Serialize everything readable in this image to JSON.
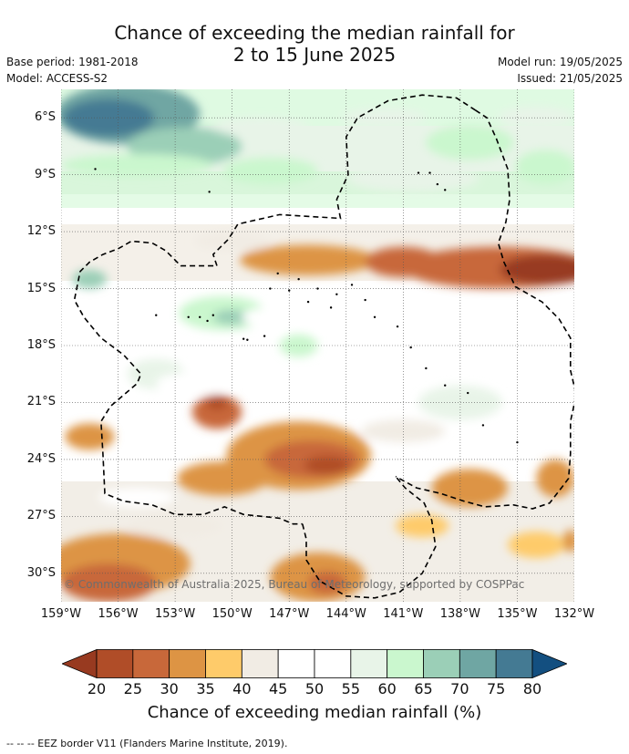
{
  "title": {
    "line1": "Chance of exceeding the median rainfall for",
    "line2": "2 to 15 June 2025"
  },
  "meta": {
    "base_period": "Base period: 1981-2018",
    "model": "Model: ACCESS-S2",
    "model_run": "Model run: 19/05/2025",
    "issued": "Issued: 21/05/2025"
  },
  "map": {
    "lon_min": -159,
    "lon_max": -132,
    "lat_min": -31.5,
    "lat_max": -4.5,
    "lat_labels": [
      {
        "lat": -6,
        "label": "6°S"
      },
      {
        "lat": -9,
        "label": "9°S"
      },
      {
        "lat": -12,
        "label": "12°S"
      },
      {
        "lat": -15,
        "label": "15°S"
      },
      {
        "lat": -18,
        "label": "18°S"
      },
      {
        "lat": -21,
        "label": "21°S"
      },
      {
        "lat": -24,
        "label": "24°S"
      },
      {
        "lat": -27,
        "label": "27°S"
      },
      {
        "lat": -30,
        "label": "30°S"
      }
    ],
    "lon_labels": [
      {
        "lon": -159,
        "label": "159°W"
      },
      {
        "lon": -156,
        "label": "156°W"
      },
      {
        "lon": -153,
        "label": "153°W"
      },
      {
        "lon": -150,
        "label": "150°W"
      },
      {
        "lon": -147,
        "label": "147°W"
      },
      {
        "lon": -144,
        "label": "144°W"
      },
      {
        "lon": -141,
        "label": "141°W"
      },
      {
        "lon": -138,
        "label": "138°W"
      },
      {
        "lon": -135,
        "label": "135°W"
      },
      {
        "lon": -132,
        "label": "132°W"
      }
    ],
    "copyright": "© Commonwealth of Australia 2025, Bureau of Meteorology, supported by COSPPac",
    "blobs": [
      {
        "lon": -155.5,
        "lat": -5.8,
        "rx": 3.8,
        "ry": 1.6,
        "cls": 75
      },
      {
        "lon": -156.5,
        "lat": -6.0,
        "rx": 2.4,
        "ry": 1.0,
        "cls": 80
      },
      {
        "lon": -152.5,
        "lat": -7.5,
        "rx": 3.0,
        "ry": 1.0,
        "cls": 70
      },
      {
        "lon": -148.0,
        "lat": -8.8,
        "rx": 2.5,
        "ry": 0.7,
        "cls": 65
      },
      {
        "lon": -137.5,
        "lat": -7.3,
        "rx": 2.3,
        "ry": 0.9,
        "cls": 65
      },
      {
        "lon": -133.5,
        "lat": -8.6,
        "rx": 1.6,
        "ry": 0.9,
        "cls": 65
      },
      {
        "lon": -140.5,
        "lat": -9.2,
        "rx": 3.5,
        "ry": 0.7,
        "cls": 60
      },
      {
        "lon": -136.0,
        "lat": -13.9,
        "rx": 5.0,
        "ry": 1.1,
        "cls": 30
      },
      {
        "lon": -133.5,
        "lat": -14.0,
        "rx": 2.4,
        "ry": 0.8,
        "cls": 20
      },
      {
        "lon": -146.0,
        "lat": -13.5,
        "rx": 3.6,
        "ry": 0.8,
        "cls": 35
      },
      {
        "lon": -141.0,
        "lat": -13.6,
        "rx": 2.0,
        "ry": 0.8,
        "cls": 30
      },
      {
        "lon": -157.5,
        "lat": -14.5,
        "rx": 0.9,
        "ry": 0.5,
        "cls": 70
      },
      {
        "lon": -150.5,
        "lat": -16.3,
        "rx": 2.3,
        "ry": 0.9,
        "cls": 65
      },
      {
        "lon": -150.0,
        "lat": -16.5,
        "rx": 1.0,
        "ry": 0.4,
        "cls": 70
      },
      {
        "lon": -146.5,
        "lat": -18.0,
        "rx": 1.0,
        "ry": 0.6,
        "cls": 65
      },
      {
        "lon": -154.0,
        "lat": -19.5,
        "rx": 1.5,
        "ry": 0.8,
        "cls": 60
      },
      {
        "lon": -138.0,
        "lat": -21.0,
        "rx": 2.2,
        "ry": 0.9,
        "cls": 60
      },
      {
        "lon": -150.8,
        "lat": -21.5,
        "rx": 1.3,
        "ry": 0.9,
        "cls": 30
      },
      {
        "lon": -150.8,
        "lat": -21.0,
        "rx": 0.6,
        "ry": 0.4,
        "cls": 25
      },
      {
        "lon": -146.5,
        "lat": -23.8,
        "rx": 3.8,
        "ry": 1.8,
        "cls": 35
      },
      {
        "lon": -145.8,
        "lat": -24.0,
        "rx": 2.5,
        "ry": 1.0,
        "cls": 30
      },
      {
        "lon": -145.0,
        "lat": -24.3,
        "rx": 1.2,
        "ry": 0.5,
        "cls": 25
      },
      {
        "lon": -157.5,
        "lat": -22.8,
        "rx": 1.3,
        "ry": 0.7,
        "cls": 35
      },
      {
        "lon": -150.5,
        "lat": -25.0,
        "rx": 2.4,
        "ry": 0.9,
        "cls": 35
      },
      {
        "lon": -137.5,
        "lat": -25.5,
        "rx": 2.0,
        "ry": 1.0,
        "cls": 35
      },
      {
        "lon": -133.0,
        "lat": -25.0,
        "rx": 1.0,
        "ry": 1.0,
        "cls": 35
      },
      {
        "lon": -156.0,
        "lat": -29.5,
        "rx": 3.8,
        "ry": 1.6,
        "cls": 35
      },
      {
        "lon": -156.5,
        "lat": -30.5,
        "rx": 2.5,
        "ry": 1.0,
        "cls": 30
      },
      {
        "lon": -145.5,
        "lat": -30.2,
        "rx": 2.5,
        "ry": 1.3,
        "cls": 35
      },
      {
        "lon": -145.0,
        "lat": -30.5,
        "rx": 1.0,
        "ry": 0.6,
        "cls": 30
      },
      {
        "lon": -140.0,
        "lat": -27.5,
        "rx": 1.4,
        "ry": 0.6,
        "cls": 40
      },
      {
        "lon": -134.0,
        "lat": -28.5,
        "rx": 1.5,
        "ry": 0.7,
        "cls": 40
      },
      {
        "lon": -132.2,
        "lat": -28.3,
        "rx": 0.4,
        "ry": 0.6,
        "cls": 35
      },
      {
        "lon": -148.5,
        "lat": -6.5,
        "rx": 2.5,
        "ry": 0.5,
        "cls": 60
      },
      {
        "lon": -142.0,
        "lat": -6.0,
        "rx": 2.2,
        "ry": 0.5,
        "cls": 60
      },
      {
        "lon": -134.0,
        "lat": -6.0,
        "rx": 2.0,
        "ry": 0.6,
        "cls": 60
      },
      {
        "lon": -155.0,
        "lat": -8.5,
        "rx": 4.0,
        "ry": 0.6,
        "cls": 65
      },
      {
        "lon": -147.0,
        "lat": -16.5,
        "rx": 2.5,
        "ry": 0.6,
        "cls": 55
      },
      {
        "lon": -152.0,
        "lat": -20.0,
        "rx": 2.0,
        "ry": 0.6,
        "cls": 55
      },
      {
        "lon": -143.0,
        "lat": -19.5,
        "rx": 2.0,
        "ry": 0.6,
        "cls": 55
      },
      {
        "lon": -155.0,
        "lat": -26.0,
        "rx": 2.0,
        "ry": 0.5,
        "cls": 55
      },
      {
        "lon": -141.0,
        "lat": -22.5,
        "rx": 2.2,
        "ry": 0.6,
        "cls": 45
      },
      {
        "lon": -153.0,
        "lat": -27.5,
        "rx": 2.5,
        "ry": 0.6,
        "cls": 45
      },
      {
        "lon": -150.0,
        "lat": -12.5,
        "rx": 2.0,
        "ry": 0.5,
        "cls": 45
      }
    ],
    "eez": [
      {
        "id": "north",
        "points": [
          [
            -137.2,
            -5.6
          ],
          [
            -138.2,
            -4.95
          ],
          [
            -140.0,
            -4.8
          ],
          [
            -141.8,
            -5.1
          ],
          [
            -143.4,
            -6.0
          ],
          [
            -144.0,
            -7.0
          ],
          [
            -143.9,
            -9.0
          ],
          [
            -144.5,
            -10.3
          ],
          [
            -144.3,
            -11.3
          ],
          [
            -147.5,
            -11.1
          ],
          [
            -149.7,
            -11.6
          ],
          [
            -150.2,
            -12.4
          ],
          [
            -151.0,
            -13.2
          ],
          [
            -150.8,
            -13.8
          ],
          [
            -152.7,
            -13.8
          ],
          [
            -153.5,
            -13.0
          ],
          [
            -154.2,
            -12.6
          ],
          [
            -155.3,
            -12.5
          ],
          [
            -156.0,
            -12.9
          ],
          [
            -156.8,
            -13.2
          ],
          [
            -157.5,
            -13.6
          ],
          [
            -158.0,
            -14.1
          ],
          [
            -158.3,
            -15.6
          ],
          [
            -157.8,
            -16.5
          ],
          [
            -156.9,
            -17.6
          ],
          [
            -155.7,
            -18.5
          ],
          [
            -154.8,
            -19.5
          ],
          [
            -155.0,
            -20.0
          ],
          [
            -156.4,
            -21.2
          ],
          [
            -156.9,
            -22.0
          ],
          [
            -156.8,
            -23.7
          ],
          [
            -156.7,
            -25.8
          ],
          [
            -155.7,
            -26.2
          ],
          [
            -154.2,
            -26.4
          ],
          [
            -153.0,
            -26.9
          ],
          [
            -151.5,
            -26.9
          ],
          [
            -150.4,
            -26.5
          ],
          [
            -149.4,
            -26.9
          ],
          [
            -147.5,
            -27.1
          ],
          [
            -146.8,
            -27.4
          ],
          [
            -146.3,
            -27.4
          ]
        ]
      },
      {
        "id": "east",
        "points": [
          [
            -137.2,
            -5.6
          ],
          [
            -136.6,
            -6.0
          ],
          [
            -136.1,
            -7.1
          ],
          [
            -135.5,
            -8.7
          ],
          [
            -135.4,
            -10.3
          ],
          [
            -135.6,
            -11.5
          ],
          [
            -136.0,
            -12.6
          ],
          [
            -135.7,
            -13.6
          ],
          [
            -135.1,
            -14.9
          ],
          [
            -133.7,
            -15.7
          ],
          [
            -132.8,
            -16.6
          ],
          [
            -132.2,
            -17.6
          ],
          [
            -132.2,
            -19.3
          ],
          [
            -131.9,
            -20.6
          ],
          [
            -132.2,
            -22.0
          ],
          [
            -132.2,
            -23.7
          ],
          [
            -132.3,
            -25.0
          ],
          [
            -132.6,
            -25.4
          ],
          [
            -133.3,
            -26.3
          ],
          [
            -134.2,
            -26.6
          ],
          [
            -135.2,
            -26.4
          ],
          [
            -136.7,
            -26.5
          ],
          [
            -137.8,
            -26.2
          ],
          [
            -139.0,
            -25.8
          ],
          [
            -140.3,
            -25.5
          ],
          [
            -141.4,
            -24.9
          ]
        ]
      },
      {
        "id": "south",
        "points": [
          [
            -146.3,
            -27.4
          ],
          [
            -146.1,
            -28.2
          ],
          [
            -146.1,
            -29.3
          ],
          [
            -145.4,
            -30.4
          ],
          [
            -144.0,
            -31.2
          ],
          [
            -142.5,
            -31.3
          ],
          [
            -141.2,
            -31.0
          ],
          [
            -140.0,
            -30.0
          ],
          [
            -139.3,
            -28.6
          ],
          [
            -139.5,
            -27.2
          ],
          [
            -139.9,
            -26.3
          ],
          [
            -140.9,
            -25.5
          ],
          [
            -141.4,
            -24.9
          ]
        ]
      }
    ],
    "islands": [
      [
        -149.4,
        -17.65
      ],
      [
        -149.2,
        -17.7
      ],
      [
        -148.3,
        -17.5
      ],
      [
        -151.3,
        -16.7
      ],
      [
        -151.7,
        -16.5
      ],
      [
        -151.0,
        -16.4
      ],
      [
        -145.5,
        -15.0
      ],
      [
        -144.5,
        -15.3
      ],
      [
        -143.7,
        -14.8
      ],
      [
        -142.5,
        -16.5
      ],
      [
        -141.3,
        -17.0
      ],
      [
        -140.6,
        -18.1
      ],
      [
        -139.8,
        -19.2
      ],
      [
        -138.8,
        -20.1
      ],
      [
        -137.6,
        -20.5
      ],
      [
        -136.8,
        -22.2
      ],
      [
        -135.0,
        -23.1
      ],
      [
        -146.5,
        -14.5
      ],
      [
        -147.0,
        -15.1
      ],
      [
        -148.0,
        -15.0
      ],
      [
        -147.6,
        -14.2
      ],
      [
        -140.2,
        -8.9
      ],
      [
        -139.2,
        -9.5
      ],
      [
        -139.6,
        -8.9
      ],
      [
        -138.8,
        -9.8
      ],
      [
        -154.0,
        -16.4
      ],
      [
        -152.3,
        -16.5
      ],
      [
        -144.8,
        -16.0
      ],
      [
        -143.0,
        -15.6
      ],
      [
        -146.0,
        -15.7
      ],
      [
        -157.2,
        -8.7
      ],
      [
        -151.2,
        -9.9
      ]
    ]
  },
  "colorbar": {
    "colors": [
      "#983a20",
      "#b04d28",
      "#c8683a",
      "#dd9444",
      "#fecb6a",
      "#f1ece4",
      "#ffffff",
      "#ffffff",
      "#e8f4e8",
      "#caf7ce",
      "#9bcfb7",
      "#6fa6a3",
      "#447a93",
      "#134f80"
    ],
    "ticks": [
      "20",
      "25",
      "30",
      "35",
      "40",
      "45",
      "50",
      "55",
      "60",
      "65",
      "70",
      "75",
      "80"
    ],
    "label": "Chance of exceeding median rainfall (%)"
  },
  "footnote": "--  --  -- EEZ border V11 (Flanders Marine Institute, 2019)."
}
